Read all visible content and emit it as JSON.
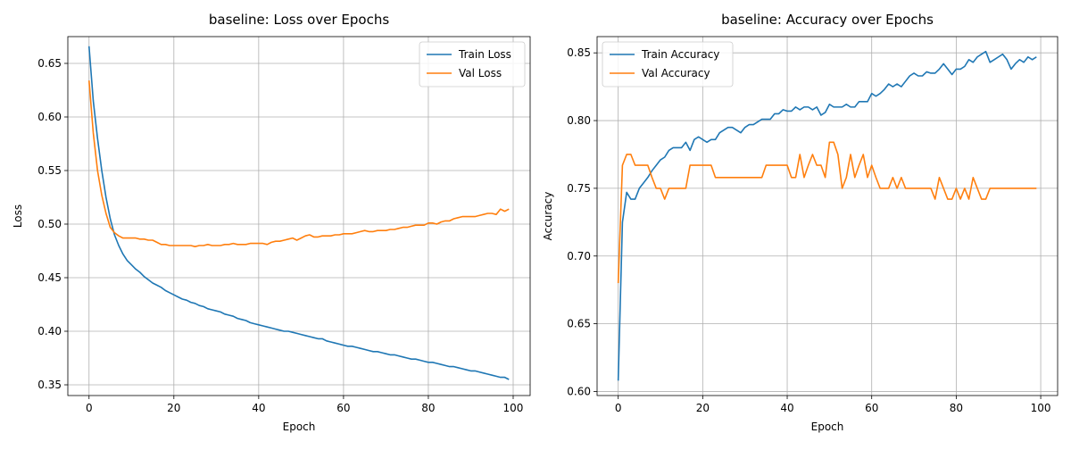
{
  "chart_data": [
    {
      "type": "line",
      "title": "baseline: Loss over Epochs",
      "xlabel": "Epoch",
      "ylabel": "Loss",
      "xlim": [
        -5,
        104
      ],
      "ylim": [
        0.34,
        0.675
      ],
      "xticks": [
        "0",
        "20",
        "40",
        "60",
        "80",
        "100"
      ],
      "xtick_values": [
        0,
        20,
        40,
        60,
        80,
        100
      ],
      "yticks": [
        "0.35",
        "0.40",
        "0.45",
        "0.50",
        "0.55",
        "0.60",
        "0.65"
      ],
      "ytick_values": [
        0.35,
        0.4,
        0.45,
        0.5,
        0.55,
        0.6,
        0.65
      ],
      "grid": true,
      "legend_position": "top-right",
      "series": [
        {
          "name": "Train Loss",
          "color": "#1f77b4",
          "x": [
            0,
            1,
            2,
            3,
            4,
            5,
            6,
            7,
            8,
            9,
            10,
            11,
            12,
            13,
            14,
            15,
            16,
            17,
            18,
            19,
            20,
            21,
            22,
            23,
            24,
            25,
            26,
            27,
            28,
            29,
            30,
            31,
            32,
            33,
            34,
            35,
            36,
            37,
            38,
            39,
            40,
            41,
            42,
            43,
            44,
            45,
            46,
            47,
            48,
            49,
            50,
            51,
            52,
            53,
            54,
            55,
            56,
            57,
            58,
            59,
            60,
            61,
            62,
            63,
            64,
            65,
            66,
            67,
            68,
            69,
            70,
            71,
            72,
            73,
            74,
            75,
            76,
            77,
            78,
            79,
            80,
            81,
            82,
            83,
            84,
            85,
            86,
            87,
            88,
            89,
            90,
            91,
            92,
            93,
            94,
            95,
            96,
            97,
            98,
            99
          ],
          "values": [
            0.666,
            0.615,
            0.58,
            0.55,
            0.525,
            0.505,
            0.49,
            0.48,
            0.472,
            0.466,
            0.462,
            0.458,
            0.455,
            0.451,
            0.448,
            0.445,
            0.443,
            0.441,
            0.438,
            0.436,
            0.434,
            0.432,
            0.43,
            0.429,
            0.427,
            0.426,
            0.424,
            0.423,
            0.421,
            0.42,
            0.419,
            0.418,
            0.416,
            0.415,
            0.414,
            0.412,
            0.411,
            0.41,
            0.408,
            0.407,
            0.406,
            0.405,
            0.404,
            0.403,
            0.402,
            0.401,
            0.4,
            0.4,
            0.399,
            0.398,
            0.397,
            0.396,
            0.395,
            0.394,
            0.393,
            0.393,
            0.391,
            0.39,
            0.389,
            0.388,
            0.387,
            0.386,
            0.386,
            0.385,
            0.384,
            0.383,
            0.382,
            0.381,
            0.381,
            0.38,
            0.379,
            0.378,
            0.378,
            0.377,
            0.376,
            0.375,
            0.374,
            0.374,
            0.373,
            0.372,
            0.371,
            0.371,
            0.37,
            0.369,
            0.368,
            0.367,
            0.367,
            0.366,
            0.365,
            0.364,
            0.363,
            0.363,
            0.362,
            0.361,
            0.36,
            0.359,
            0.358,
            0.357,
            0.357,
            0.355
          ]
        },
        {
          "name": "Val Loss",
          "color": "#ff7f0e",
          "x": [
            0,
            1,
            2,
            3,
            4,
            5,
            6,
            7,
            8,
            9,
            10,
            11,
            12,
            13,
            14,
            15,
            16,
            17,
            18,
            19,
            20,
            21,
            22,
            23,
            24,
            25,
            26,
            27,
            28,
            29,
            30,
            31,
            32,
            33,
            34,
            35,
            36,
            37,
            38,
            39,
            40,
            41,
            42,
            43,
            44,
            45,
            46,
            47,
            48,
            49,
            50,
            51,
            52,
            53,
            54,
            55,
            56,
            57,
            58,
            59,
            60,
            61,
            62,
            63,
            64,
            65,
            66,
            67,
            68,
            69,
            70,
            71,
            72,
            73,
            74,
            75,
            76,
            77,
            78,
            79,
            80,
            81,
            82,
            83,
            84,
            85,
            86,
            87,
            88,
            89,
            90,
            91,
            92,
            93,
            94,
            95,
            96,
            97,
            98,
            99
          ],
          "values": [
            0.634,
            0.585,
            0.55,
            0.527,
            0.51,
            0.497,
            0.492,
            0.489,
            0.487,
            0.487,
            0.487,
            0.487,
            0.486,
            0.486,
            0.485,
            0.485,
            0.483,
            0.481,
            0.481,
            0.48,
            0.48,
            0.48,
            0.48,
            0.48,
            0.48,
            0.479,
            0.48,
            0.48,
            0.481,
            0.48,
            0.48,
            0.48,
            0.481,
            0.481,
            0.482,
            0.481,
            0.481,
            0.481,
            0.482,
            0.482,
            0.482,
            0.482,
            0.481,
            0.483,
            0.484,
            0.484,
            0.485,
            0.486,
            0.487,
            0.485,
            0.487,
            0.489,
            0.49,
            0.488,
            0.488,
            0.489,
            0.489,
            0.489,
            0.49,
            0.49,
            0.491,
            0.491,
            0.491,
            0.492,
            0.493,
            0.494,
            0.493,
            0.493,
            0.494,
            0.494,
            0.494,
            0.495,
            0.495,
            0.496,
            0.497,
            0.497,
            0.498,
            0.499,
            0.499,
            0.499,
            0.501,
            0.501,
            0.5,
            0.502,
            0.503,
            0.503,
            0.505,
            0.506,
            0.507,
            0.507,
            0.507,
            0.507,
            0.508,
            0.509,
            0.51,
            0.51,
            0.509,
            0.514,
            0.512,
            0.514
          ]
        }
      ]
    },
    {
      "type": "line",
      "title": "baseline: Accuracy over Epochs",
      "xlabel": "Epoch",
      "ylabel": "Accuracy",
      "xlim": [
        -5,
        104
      ],
      "ylim": [
        0.597,
        0.862
      ],
      "xticks": [
        "0",
        "20",
        "40",
        "60",
        "80",
        "100"
      ],
      "xtick_values": [
        0,
        20,
        40,
        60,
        80,
        100
      ],
      "yticks": [
        "0.60",
        "0.65",
        "0.70",
        "0.75",
        "0.80",
        "0.85"
      ],
      "ytick_values": [
        0.6,
        0.65,
        0.7,
        0.75,
        0.8,
        0.85
      ],
      "grid": true,
      "legend_position": "top-left",
      "series": [
        {
          "name": "Train Accuracy",
          "color": "#1f77b4",
          "x": [
            0,
            1,
            2,
            3,
            4,
            5,
            6,
            7,
            8,
            9,
            10,
            11,
            12,
            13,
            14,
            15,
            16,
            17,
            18,
            19,
            20,
            21,
            22,
            23,
            24,
            25,
            26,
            27,
            28,
            29,
            30,
            31,
            32,
            33,
            34,
            35,
            36,
            37,
            38,
            39,
            40,
            41,
            42,
            43,
            44,
            45,
            46,
            47,
            48,
            49,
            50,
            51,
            52,
            53,
            54,
            55,
            56,
            57,
            58,
            59,
            60,
            61,
            62,
            63,
            64,
            65,
            66,
            67,
            68,
            69,
            70,
            71,
            72,
            73,
            74,
            75,
            76,
            77,
            78,
            79,
            80,
            81,
            82,
            83,
            84,
            85,
            86,
            87,
            88,
            89,
            90,
            91,
            92,
            93,
            94,
            95,
            96,
            97,
            98,
            99
          ],
          "values": [
            0.608,
            0.725,
            0.747,
            0.742,
            0.742,
            0.75,
            0.754,
            0.758,
            0.763,
            0.767,
            0.771,
            0.773,
            0.778,
            0.78,
            0.78,
            0.78,
            0.784,
            0.778,
            0.786,
            0.788,
            0.786,
            0.784,
            0.786,
            0.786,
            0.791,
            0.793,
            0.795,
            0.795,
            0.793,
            0.791,
            0.795,
            0.797,
            0.797,
            0.799,
            0.801,
            0.801,
            0.801,
            0.805,
            0.805,
            0.808,
            0.807,
            0.807,
            0.81,
            0.808,
            0.81,
            0.81,
            0.808,
            0.81,
            0.804,
            0.806,
            0.812,
            0.81,
            0.81,
            0.81,
            0.812,
            0.81,
            0.81,
            0.814,
            0.814,
            0.814,
            0.82,
            0.818,
            0.82,
            0.823,
            0.827,
            0.825,
            0.827,
            0.825,
            0.829,
            0.833,
            0.835,
            0.833,
            0.833,
            0.836,
            0.835,
            0.835,
            0.838,
            0.842,
            0.838,
            0.834,
            0.838,
            0.838,
            0.84,
            0.845,
            0.843,
            0.847,
            0.849,
            0.851,
            0.843,
            0.845,
            0.847,
            0.849,
            0.845,
            0.838,
            0.842,
            0.845,
            0.843,
            0.847,
            0.845,
            0.847
          ]
        },
        {
          "name": "Val Accuracy",
          "color": "#ff7f0e",
          "x": [
            0,
            1,
            2,
            3,
            4,
            5,
            6,
            7,
            8,
            9,
            10,
            11,
            12,
            13,
            14,
            15,
            16,
            17,
            18,
            19,
            20,
            21,
            22,
            23,
            24,
            25,
            26,
            27,
            28,
            29,
            30,
            31,
            32,
            33,
            34,
            35,
            36,
            37,
            38,
            39,
            40,
            41,
            42,
            43,
            44,
            45,
            46,
            47,
            48,
            49,
            50,
            51,
            52,
            53,
            54,
            55,
            56,
            57,
            58,
            59,
            60,
            61,
            62,
            63,
            64,
            65,
            66,
            67,
            68,
            69,
            70,
            71,
            72,
            73,
            74,
            75,
            76,
            77,
            78,
            79,
            80,
            81,
            82,
            83,
            84,
            85,
            86,
            87,
            88,
            89,
            90,
            91,
            92,
            93,
            94,
            95,
            96,
            97,
            98,
            99
          ],
          "values": [
            0.68,
            0.767,
            0.775,
            0.775,
            0.767,
            0.767,
            0.767,
            0.767,
            0.758,
            0.75,
            0.75,
            0.742,
            0.75,
            0.75,
            0.75,
            0.75,
            0.75,
            0.767,
            0.767,
            0.767,
            0.767,
            0.767,
            0.767,
            0.758,
            0.758,
            0.758,
            0.758,
            0.758,
            0.758,
            0.758,
            0.758,
            0.758,
            0.758,
            0.758,
            0.758,
            0.767,
            0.767,
            0.767,
            0.767,
            0.767,
            0.767,
            0.758,
            0.758,
            0.775,
            0.758,
            0.767,
            0.775,
            0.767,
            0.767,
            0.758,
            0.784,
            0.784,
            0.775,
            0.75,
            0.758,
            0.775,
            0.758,
            0.767,
            0.775,
            0.758,
            0.767,
            0.758,
            0.75,
            0.75,
            0.75,
            0.758,
            0.75,
            0.758,
            0.75,
            0.75,
            0.75,
            0.75,
            0.75,
            0.75,
            0.75,
            0.742,
            0.758,
            0.75,
            0.742,
            0.742,
            0.75,
            0.742,
            0.75,
            0.742,
            0.758,
            0.75,
            0.742,
            0.742,
            0.75,
            0.75,
            0.75,
            0.75,
            0.75,
            0.75,
            0.75,
            0.75,
            0.75,
            0.75,
            0.75,
            0.75
          ]
        }
      ]
    }
  ]
}
